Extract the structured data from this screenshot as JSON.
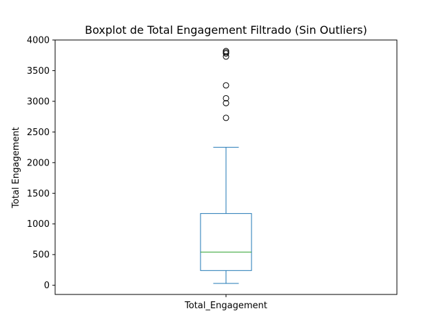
{
  "chart_data": {
    "type": "box",
    "title": "Boxplot de Total Engagement Filtrado (Sin Outliers)",
    "xlabel": "",
    "ylabel": "Total Engagement",
    "ylim": [
      -150,
      4000
    ],
    "yticks": [
      0,
      500,
      1000,
      1500,
      2000,
      2500,
      3000,
      3500,
      4000
    ],
    "categories": [
      "Total_Engagement"
    ],
    "boxes": [
      {
        "category": "Total_Engagement",
        "whisker_low": 30,
        "q1": 240,
        "median": 540,
        "q3": 1170,
        "whisker_high": 2250,
        "outliers": [
          2730,
          2970,
          3050,
          3260,
          3730,
          3780,
          3800,
          3820
        ]
      }
    ],
    "colors": {
      "box": "#1f77b4",
      "median": "#2ca02c",
      "outlier": "#000000"
    },
    "grid": false
  }
}
